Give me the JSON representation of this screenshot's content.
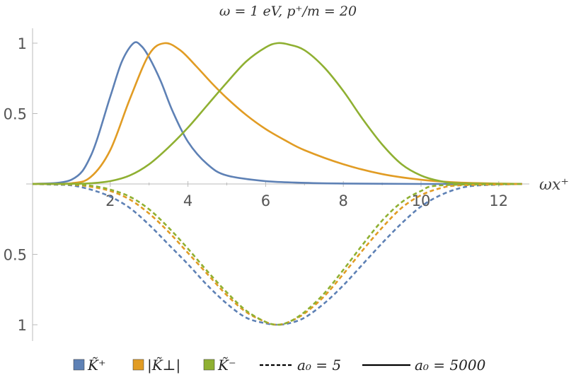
{
  "chart_data": {
    "type": "line",
    "title": "ω = 1 eV, p⁺/m = 20",
    "xlabel": "ωx⁺",
    "ylabel": "",
    "xlim": [
      0,
      12.8
    ],
    "ylim": [
      -1.1,
      1.1
    ],
    "x_ticks": [
      "2",
      "4",
      "6",
      "8",
      "10",
      "12"
    ],
    "y_ticks": [
      "1",
      "0.5",
      "0.5",
      "1"
    ],
    "grid": false,
    "legend_position": "bottom",
    "series": [
      {
        "name": "K̃⁺",
        "color": "#5e81b5",
        "style": "solid",
        "group": "a₀ = 5000",
        "x": [
          0.0,
          1.0,
          1.5,
          2.0,
          2.3,
          2.6,
          2.8,
          3.0,
          3.3,
          3.6,
          4.0,
          4.5,
          5.0,
          6.0,
          7.0,
          8.0,
          10.0,
          12.6
        ],
        "y": [
          0.0,
          0.03,
          0.2,
          0.62,
          0.87,
          1.0,
          0.98,
          0.9,
          0.73,
          0.52,
          0.3,
          0.14,
          0.06,
          0.02,
          0.008,
          0.003,
          0.0,
          0.0
        ]
      },
      {
        "name": "|K̃⊥|",
        "color": "#e19c24",
        "style": "solid",
        "group": "a₀ = 5000",
        "x": [
          0.0,
          1.0,
          1.5,
          2.0,
          2.5,
          3.0,
          3.4,
          3.8,
          4.2,
          4.6,
          5.0,
          5.5,
          6.0,
          6.5,
          7.0,
          8.0,
          9.0,
          10.0,
          11.0,
          12.6
        ],
        "y": [
          0.0,
          0.005,
          0.05,
          0.24,
          0.6,
          0.92,
          1.0,
          0.95,
          0.84,
          0.72,
          0.61,
          0.49,
          0.39,
          0.31,
          0.24,
          0.14,
          0.07,
          0.03,
          0.01,
          0.0
        ]
      },
      {
        "name": "K̃⁻",
        "color": "#8fb032",
        "style": "solid",
        "group": "a₀ = 5000",
        "x": [
          0.0,
          1.0,
          1.5,
          2.0,
          2.5,
          3.0,
          3.5,
          4.0,
          4.5,
          5.0,
          5.5,
          6.0,
          6.3,
          6.6,
          7.0,
          7.5,
          8.0,
          8.5,
          9.0,
          9.5,
          10.0,
          10.5,
          11.0,
          12.6
        ],
        "y": [
          0.0,
          0.001,
          0.005,
          0.02,
          0.06,
          0.14,
          0.26,
          0.4,
          0.56,
          0.72,
          0.87,
          0.97,
          1.0,
          0.99,
          0.95,
          0.83,
          0.66,
          0.46,
          0.28,
          0.14,
          0.06,
          0.02,
          0.005,
          0.0
        ]
      },
      {
        "name": "K̃⁺",
        "color": "#5e81b5",
        "style": "dashed",
        "group": "a₀ = 5",
        "x": [
          0.0,
          0.6,
          1.0,
          1.5,
          2.0,
          2.5,
          3.0,
          3.5,
          4.0,
          4.5,
          5.0,
          5.5,
          6.0,
          6.3,
          6.6,
          7.0,
          7.5,
          8.0,
          8.5,
          9.0,
          9.5,
          10.0,
          10.5,
          11.0,
          11.5,
          12.6
        ],
        "y": [
          0.0,
          -0.005,
          -0.01,
          -0.04,
          -0.09,
          -0.17,
          -0.29,
          -0.43,
          -0.57,
          -0.72,
          -0.85,
          -0.95,
          -0.99,
          -1.0,
          -0.99,
          -0.95,
          -0.85,
          -0.72,
          -0.57,
          -0.42,
          -0.28,
          -0.16,
          -0.08,
          -0.03,
          -0.01,
          0.0
        ]
      },
      {
        "name": "|K̃⊥|",
        "color": "#e19c24",
        "style": "dashed",
        "group": "a₀ = 5",
        "x": [
          0.0,
          1.0,
          1.5,
          2.0,
          2.5,
          3.0,
          3.5,
          4.0,
          4.5,
          5.0,
          5.5,
          6.0,
          6.3,
          6.6,
          7.0,
          7.5,
          8.0,
          8.5,
          9.0,
          9.5,
          10.0,
          10.5,
          11.0,
          12.6
        ],
        "y": [
          0.0,
          -0.005,
          -0.02,
          -0.05,
          -0.11,
          -0.21,
          -0.34,
          -0.49,
          -0.64,
          -0.79,
          -0.91,
          -0.98,
          -1.0,
          -0.98,
          -0.92,
          -0.8,
          -0.64,
          -0.47,
          -0.31,
          -0.17,
          -0.08,
          -0.03,
          -0.01,
          0.0
        ]
      },
      {
        "name": "K̃⁻",
        "color": "#8fb032",
        "style": "dashed",
        "group": "a₀ = 5",
        "x": [
          0.0,
          1.0,
          1.5,
          2.0,
          2.5,
          3.0,
          3.5,
          4.0,
          4.5,
          5.0,
          5.5,
          6.0,
          6.3,
          6.6,
          7.0,
          7.5,
          8.0,
          8.5,
          9.0,
          9.5,
          10.0,
          10.5,
          12.6
        ],
        "y": [
          0.0,
          -0.003,
          -0.012,
          -0.04,
          -0.09,
          -0.18,
          -0.31,
          -0.46,
          -0.62,
          -0.77,
          -0.9,
          -0.98,
          -1.0,
          -0.98,
          -0.91,
          -0.78,
          -0.61,
          -0.43,
          -0.26,
          -0.13,
          -0.05,
          -0.01,
          0.0
        ]
      }
    ],
    "legend": [
      {
        "label": "K̃⁺",
        "kind": "swatch",
        "color": "#5e81b5"
      },
      {
        "label": "|K̃⊥|",
        "kind": "swatch",
        "color": "#e19c24"
      },
      {
        "label": "K̃⁻",
        "kind": "swatch",
        "color": "#8fb032"
      },
      {
        "label": "a₀ = 5",
        "kind": "dashed",
        "color": "#000000"
      },
      {
        "label": "a₀ = 5000",
        "kind": "solid",
        "color": "#000000"
      }
    ]
  }
}
